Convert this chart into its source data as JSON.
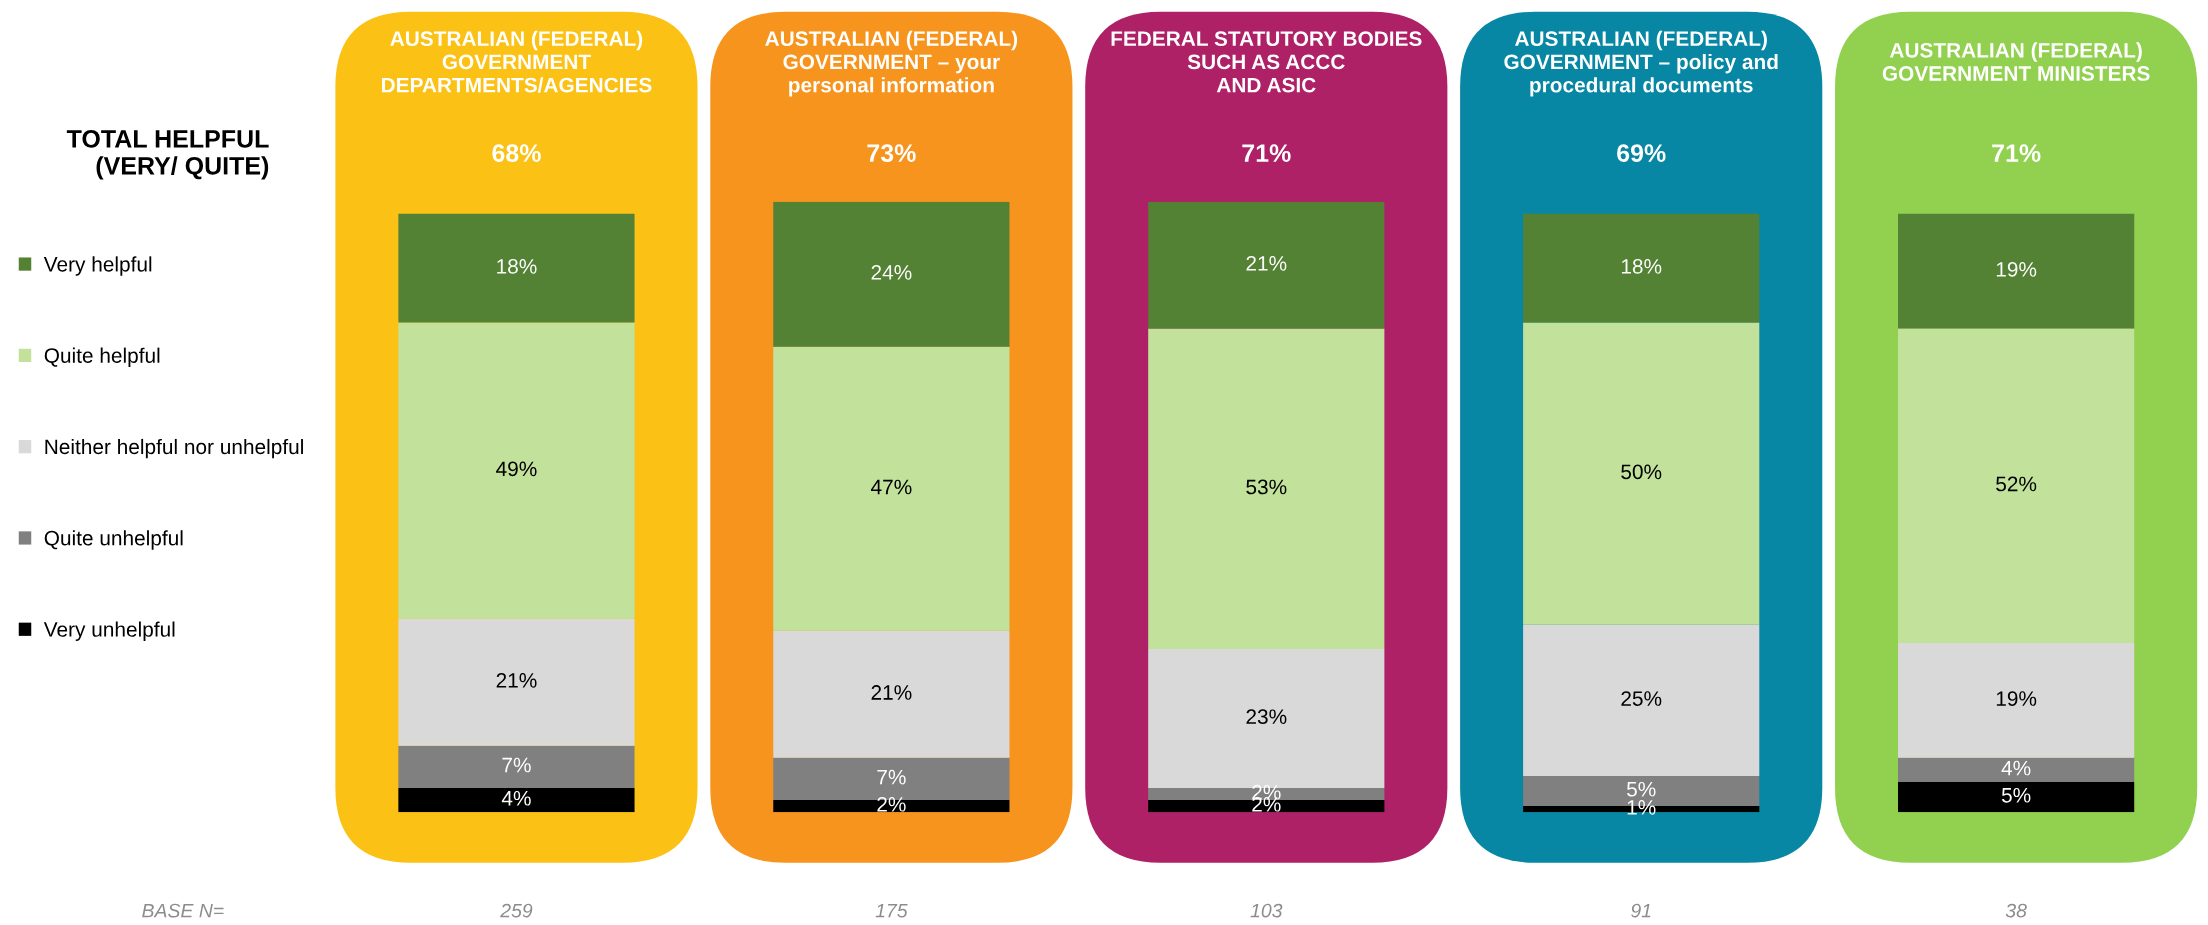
{
  "chart_data": {
    "type": "bar",
    "stacked": true,
    "legend": "left",
    "categories": [
      "AUSTRALIAN (FEDERAL)\nGOVERNMENT\nDEPARTMENTS/AGENCIES",
      "AUSTRALIAN (FEDERAL)\nGOVERNMENT – your\npersonal information",
      "FEDERAL STATUTORY BODIES\nSUCH AS ACCC\nAND ASIC",
      "AUSTRALIAN (FEDERAL)\nGOVERNMENT – policy and\nprocedural documents",
      "AUSTRALIAN (FEDERAL)\nGOVERNMENT MINISTERS"
    ],
    "series": [
      {
        "name": "Very unhelpful",
        "color": "#000000",
        "values": [
          4,
          2,
          2,
          1,
          5
        ],
        "value_labels": [
          "4%",
          "2%",
          "2%",
          "1%",
          "5%"
        ]
      },
      {
        "name": "Quite unhelpful",
        "color": "#808080",
        "values": [
          7,
          7,
          2,
          5,
          4
        ],
        "value_labels": [
          "7%",
          "7%",
          "2%",
          "5%",
          "4%"
        ]
      },
      {
        "name": "Neither helpful nor unhelpful",
        "color": "#d9d9d9",
        "values": [
          21,
          21,
          23,
          25,
          19
        ],
        "value_labels": [
          "21%",
          "21%",
          "23%",
          "25%",
          "19%"
        ]
      },
      {
        "name": "Quite helpful",
        "color": "#c2e29b",
        "values": [
          49,
          47,
          53,
          50,
          52
        ],
        "value_labels": [
          "49%",
          "47%",
          "53%",
          "50%",
          "52%"
        ]
      },
      {
        "name": "Very helpful",
        "color": "#548235",
        "values": [
          18,
          24,
          21,
          18,
          19
        ],
        "value_labels": [
          "18%",
          "24%",
          "21%",
          "18%",
          "19%"
        ]
      }
    ],
    "annotations": [
      "TOTAL HELPFUL\n(VERY/ QUITE)",
      "68%",
      "73%",
      "71%",
      "69%",
      "71%",
      "BASE N=",
      "259",
      "175",
      "103",
      "91",
      "38"
    ]
  }
}
